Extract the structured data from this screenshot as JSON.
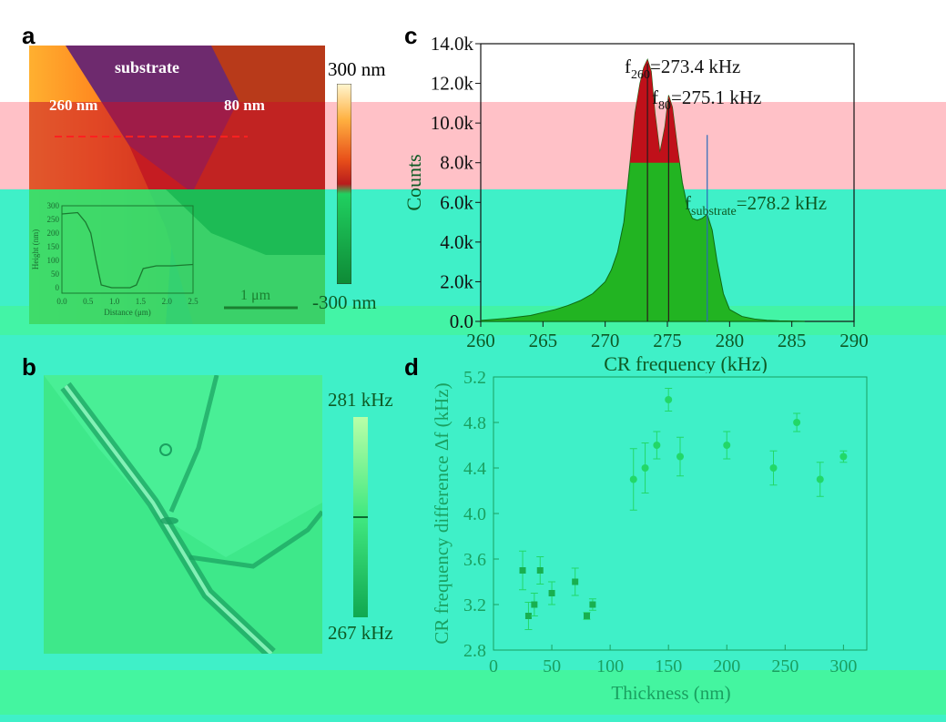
{
  "panels": {
    "a": {
      "letter": "a",
      "substrate_label": "substrate",
      "label_260": "260 nm",
      "label_80": "80 nm",
      "colorbar_max": "300 nm",
      "colorbar_min": "-300 nm",
      "scalebar_label": "1 μm",
      "inset": {
        "ylabel": "Height (nm)",
        "xlabel": "Distance (μm)",
        "yticks": [
          "300",
          "250",
          "200",
          "150",
          "100",
          "50",
          "0"
        ],
        "xticks": [
          "0.0",
          "0.5",
          "1.0",
          "1.5",
          "2.0",
          "2.5"
        ]
      }
    },
    "b": {
      "letter": "b",
      "colorbar_max": "281 kHz",
      "colorbar_min": "267 kHz"
    },
    "c": {
      "letter": "c"
    },
    "d": {
      "letter": "d"
    }
  },
  "colors": {
    "cyan_band": "#3ff0c8",
    "pink_band": "#ffc1c7",
    "green_band": "#44f5a0",
    "histogram_fill": "#22b422",
    "peak_red": "#c0101a",
    "scatter_green": "#22d868"
  },
  "chart_data": [
    {
      "type": "area",
      "panel": "c",
      "xlabel": "CR frequency (kHz)",
      "ylabel": "Counts",
      "xlim": [
        260,
        290
      ],
      "ylim": [
        0,
        14000
      ],
      "xticks": [
        "260",
        "265",
        "270",
        "275",
        "280",
        "285",
        "290"
      ],
      "yticks": [
        "0.0",
        "2.0k",
        "4.0k",
        "6.0k",
        "8.0k",
        "10.0k",
        "12.0k",
        "14.0k"
      ],
      "x": [
        260,
        262,
        264,
        265,
        266,
        267,
        268,
        269,
        270,
        270.5,
        271,
        271.5,
        272,
        272.4,
        272.8,
        273.1,
        273.4,
        273.7,
        274.0,
        274.4,
        274.8,
        275.1,
        275.4,
        275.8,
        276.2,
        276.6,
        277.0,
        277.4,
        277.8,
        278.2,
        278.6,
        279.0,
        279.5,
        280,
        281,
        282,
        283,
        284,
        285,
        286
      ],
      "y": [
        50,
        150,
        300,
        450,
        600,
        800,
        1050,
        1400,
        2000,
        2600,
        3500,
        5000,
        8000,
        10500,
        12000,
        12800,
        13200,
        12600,
        10500,
        8500,
        9800,
        11400,
        10800,
        8800,
        7000,
        5800,
        5200,
        5100,
        5200,
        5400,
        4600,
        3000,
        1400,
        600,
        250,
        120,
        60,
        30,
        15,
        5
      ],
      "peaks": [
        {
          "x": 273.4,
          "subscript": "260",
          "label": "=273.4 kHz"
        },
        {
          "x": 275.1,
          "subscript": "80",
          "label": "=275.1 kHz"
        },
        {
          "x": 278.2,
          "subscript": "substrate",
          "label": "=278.2 kHz"
        }
      ]
    },
    {
      "type": "scatter",
      "panel": "d",
      "xlabel": "Thickness (nm)",
      "ylabel": "CR frequency difference Δf (kHz)",
      "xlim": [
        0,
        320
      ],
      "ylim": [
        2.8,
        5.2
      ],
      "xticks": [
        "0",
        "50",
        "100",
        "150",
        "200",
        "250",
        "300"
      ],
      "yticks": [
        "2.8",
        "3.2",
        "3.6",
        "4.0",
        "4.4",
        "4.8",
        "5.2"
      ],
      "series": [
        {
          "marker": "square",
          "x": [
            25,
            30,
            35,
            40,
            50,
            70,
            80,
            85
          ],
          "y": [
            3.5,
            3.1,
            3.2,
            3.5,
            3.3,
            3.4,
            3.1,
            3.2
          ],
          "err": [
            0.17,
            0.12,
            0.1,
            0.12,
            0.1,
            0.12,
            0.03,
            0.05
          ]
        },
        {
          "marker": "circle",
          "x": [
            120,
            130,
            140,
            150,
            160,
            200,
            240,
            260,
            280,
            300
          ],
          "y": [
            4.3,
            4.4,
            4.6,
            5.0,
            4.5,
            4.6,
            4.4,
            4.8,
            4.3,
            4.5
          ],
          "err": [
            0.27,
            0.22,
            0.12,
            0.1,
            0.17,
            0.12,
            0.15,
            0.08,
            0.15,
            0.05
          ]
        }
      ]
    }
  ]
}
